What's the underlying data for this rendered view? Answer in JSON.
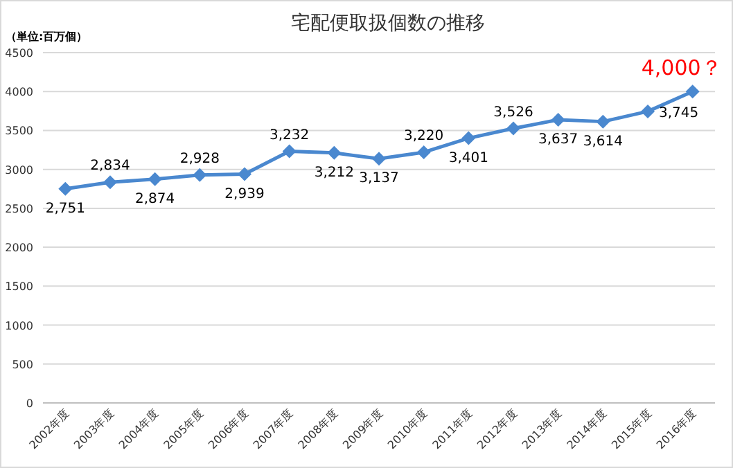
{
  "chart_data": {
    "type": "line",
    "title": "宅配便取扱個数の推移",
    "ylabel": "（単位:百万個）",
    "categories": [
      "2002年度",
      "2003年度",
      "2004年度",
      "2005年度",
      "2006年度",
      "2007年度",
      "2008年度",
      "2009年度",
      "2010年度",
      "2011年度",
      "2012年度",
      "2013年度",
      "2014年度",
      "2015年度",
      "2016年度"
    ],
    "series": [
      {
        "color": "#4a88cf",
        "values": [
          2751,
          2834,
          2874,
          2928,
          2939,
          3232,
          3212,
          3137,
          3220,
          3401,
          3526,
          3637,
          3614,
          3745,
          4000
        ],
        "value_labels": [
          "2,751",
          "2,834",
          "2,874",
          "2,928",
          "2,939",
          "3,232",
          "3,212",
          "3,137",
          "3,220",
          "3,401",
          "3,526",
          "3,637",
          "3,614",
          "3,745",
          null
        ]
      }
    ],
    "annotations": [
      {
        "text": "4,000？",
        "x": "2016年度",
        "y": 4000
      }
    ],
    "ylim": [
      0,
      4500
    ],
    "yticks": [
      0,
      500,
      1000,
      1500,
      2000,
      2500,
      3000,
      3500,
      4000,
      4500
    ],
    "grid": "y",
    "marker": "diamond",
    "line_style": "solid"
  }
}
